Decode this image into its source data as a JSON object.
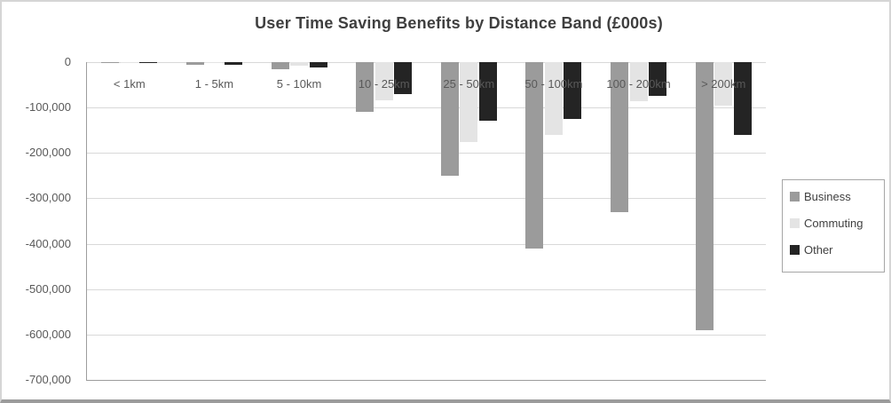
{
  "window": {
    "background": "#ffffff",
    "border_color": "#d5d5d5",
    "bottom_edge_color": "#9b9b9b"
  },
  "chart_data": {
    "type": "bar",
    "title": "User Time Saving Benefits by Distance Band (£000s)",
    "categories": [
      "< 1km",
      "1 - 5km",
      "5 - 10km",
      "10 - 25km",
      "25 - 50km",
      "50 - 100km",
      "100 - 200km",
      "> 200km"
    ],
    "series": [
      {
        "name": "Business",
        "color": "#9b9b9b",
        "values": [
          -1000,
          -6000,
          -15000,
          -110000,
          -250000,
          -410000,
          -330000,
          -590000
        ]
      },
      {
        "name": "Commuting",
        "color": "#e4e4e4",
        "values": [
          -200,
          -2000,
          -7000,
          -85000,
          -175000,
          -160000,
          -87000,
          -95000
        ]
      },
      {
        "name": "Other",
        "color": "#242424",
        "values": [
          -500,
          -5000,
          -12000,
          -70000,
          -130000,
          -125000,
          -75000,
          -160000
        ]
      }
    ],
    "xlabel": "",
    "ylabel": "",
    "ylim": [
      -700000,
      0
    ],
    "yticks": [
      {
        "label": "0",
        "value": 0
      },
      {
        "label": "-100,000",
        "value": -100000
      },
      {
        "label": "-200,000",
        "value": -200000
      },
      {
        "label": "-300,000",
        "value": -300000
      },
      {
        "label": "-400,000",
        "value": -400000
      },
      {
        "label": "-500,000",
        "value": -500000
      },
      {
        "label": "-600,000",
        "value": -600000
      },
      {
        "label": "-700,000",
        "value": -700000
      }
    ],
    "grid": true,
    "legend_position": "right",
    "colors": {
      "gridline": "#d9d9d9",
      "axis_line": "#9d9d9d",
      "tick_text": "#595959",
      "category_text": "#595959",
      "title_text": "#3f3f3f",
      "legend_text": "#404040",
      "legend_border": "#a6a6a6"
    }
  }
}
